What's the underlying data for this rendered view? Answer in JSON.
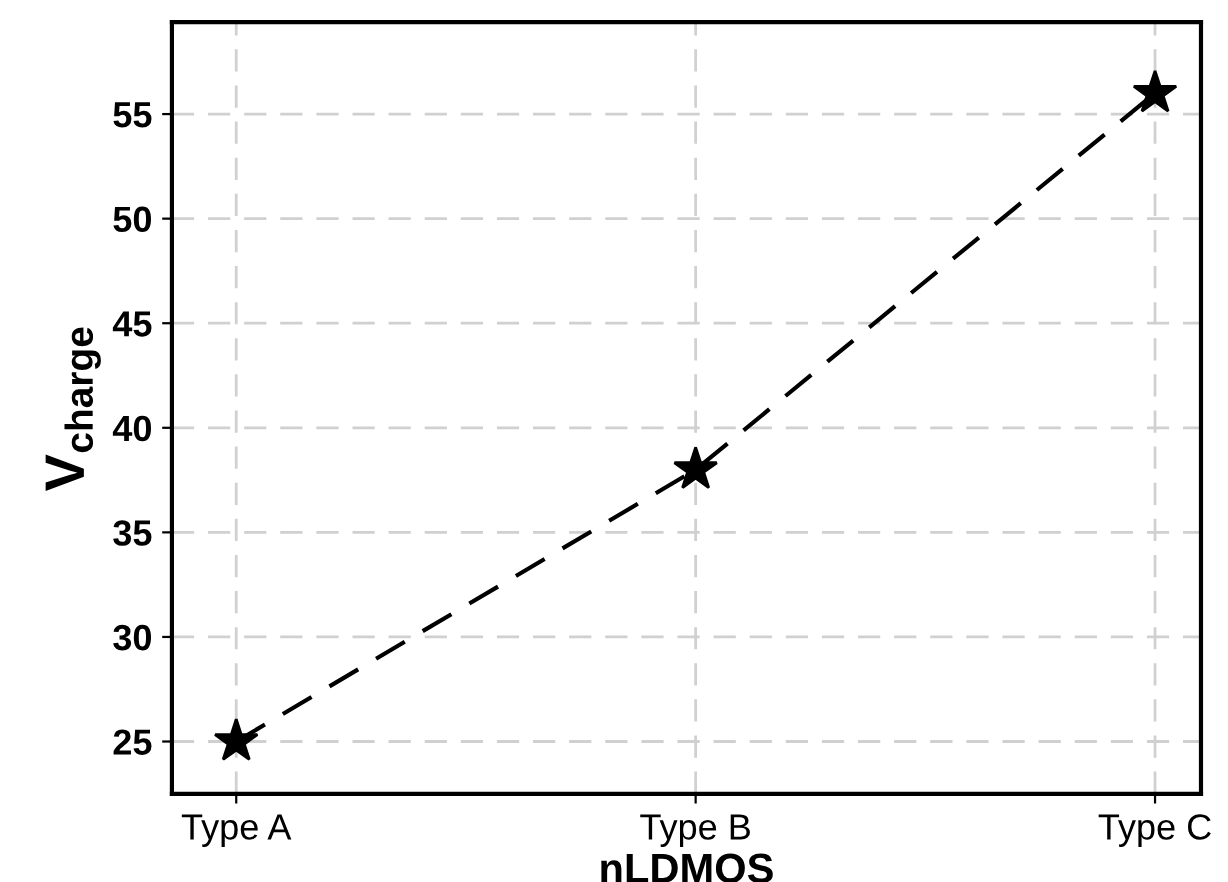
{
  "chart_data": {
    "type": "line",
    "xlabel": "nLDMOS",
    "ylabel": "V$_{charge}$",
    "categories": [
      "Type A",
      "Type B",
      "Type C"
    ],
    "series": [
      {
        "color": "#000000",
        "values": [
          25,
          38,
          56
        ]
      }
    ],
    "ylim": [
      22.5,
      59.4
    ],
    "yticks": [
      25,
      30,
      35,
      40,
      45,
      50,
      55
    ],
    "grid": true,
    "marker": "star",
    "line_style": "dashed"
  }
}
